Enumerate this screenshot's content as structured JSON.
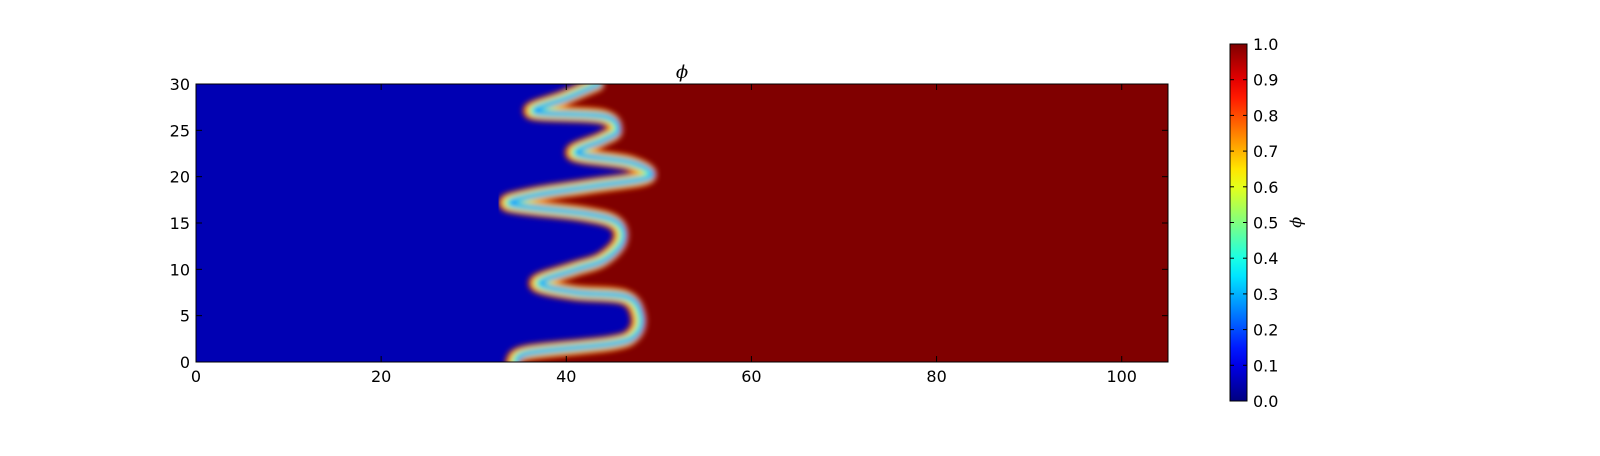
{
  "chart_data": {
    "type": "heatmap",
    "title": "ϕ",
    "xlabel": "",
    "ylabel": "",
    "xlim": [
      0,
      105
    ],
    "ylim": [
      0,
      30
    ],
    "xticks": [
      0,
      20,
      40,
      60,
      80,
      100
    ],
    "yticks": [
      0,
      5,
      10,
      15,
      20,
      25,
      30
    ],
    "colormap": "jet",
    "colorbar": {
      "label": "ϕ",
      "range": [
        0.0,
        1.0
      ],
      "ticks": [
        "0.0",
        "0.1",
        "0.2",
        "0.3",
        "0.4",
        "0.5",
        "0.6",
        "0.7",
        "0.8",
        "0.9",
        "1.0"
      ]
    },
    "field_description_values": {
      "low_value": 0.0,
      "high_value": 1.0,
      "interface_x_at_y": [
        {
          "y": 0.0,
          "x": 34.5
        },
        {
          "y": 1.0,
          "x": 36.0
        },
        {
          "y": 2.0,
          "x": 45.0
        },
        {
          "y": 3.0,
          "x": 47.5
        },
        {
          "y": 5.0,
          "x": 48.0
        },
        {
          "y": 7.0,
          "x": 46.5
        },
        {
          "y": 7.5,
          "x": 41.0
        },
        {
          "y": 8.5,
          "x": 37.0
        },
        {
          "y": 10.0,
          "x": 41.0
        },
        {
          "y": 11.0,
          "x": 44.0
        },
        {
          "y": 13.0,
          "x": 46.0
        },
        {
          "y": 15.0,
          "x": 45.5
        },
        {
          "y": 16.0,
          "x": 42.0
        },
        {
          "y": 17.0,
          "x": 34.0
        },
        {
          "y": 18.0,
          "x": 36.5
        },
        {
          "y": 19.0,
          "x": 43.0
        },
        {
          "y": 20.0,
          "x": 49.0
        },
        {
          "y": 21.5,
          "x": 47.0
        },
        {
          "y": 22.5,
          "x": 41.0
        },
        {
          "y": 24.0,
          "x": 44.0
        },
        {
          "y": 25.0,
          "x": 45.5
        },
        {
          "y": 26.5,
          "x": 44.0
        },
        {
          "y": 27.0,
          "x": 36.5
        },
        {
          "y": 28.5,
          "x": 40.0
        },
        {
          "y": 30.0,
          "x": 43.5
        }
      ]
    }
  }
}
